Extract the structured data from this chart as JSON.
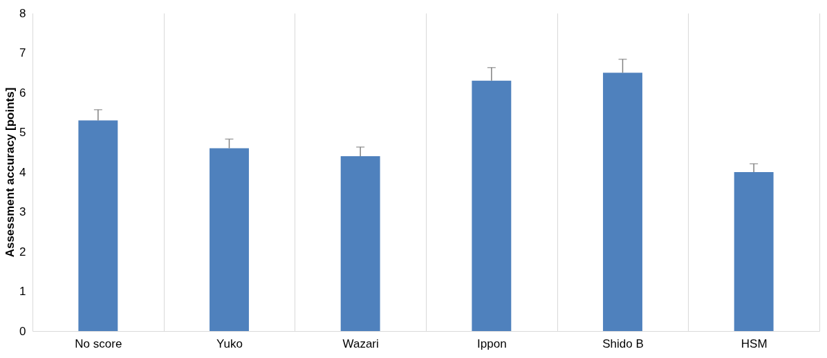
{
  "chart_data": {
    "type": "bar",
    "ylabel": "Assessment accuracy [points]",
    "categories": [
      "No score",
      "Yuko",
      "Wazari",
      "Ippon",
      "Shido B",
      "HSM"
    ],
    "values": [
      5.3,
      4.6,
      4.4,
      6.3,
      6.5,
      4.0
    ],
    "errors": [
      [
        5.3,
        5.57
      ],
      [
        4.6,
        4.83
      ],
      [
        4.4,
        4.63
      ],
      [
        6.3,
        6.63
      ],
      [
        6.5,
        6.84
      ],
      [
        4.0,
        4.21
      ]
    ],
    "color": "#4f81bd",
    "ylim": [
      0,
      8
    ],
    "yticks": [
      0,
      1,
      2,
      3,
      4,
      5,
      6,
      7,
      8
    ],
    "grid": "x"
  }
}
